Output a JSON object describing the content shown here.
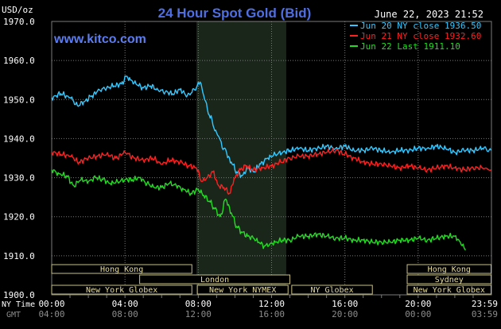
{
  "header": {
    "title": "24 Hour Spot Gold (Bid)",
    "timestamp": "June 22, 2023 21:52",
    "site": "www.kitco.com"
  },
  "colors": {
    "background": "#000000",
    "title": "#4f6fe0",
    "site": "#5b7df0",
    "grid": "#7a7a7a",
    "axis_text": "#ffffff",
    "session_shade": "#1b261b",
    "session_box_fill": "#000000",
    "session_box_stroke": "#c8c084",
    "session_text": "#e6dc9a",
    "gmt_text": "#8c8c8c"
  },
  "chart_data": {
    "type": "line",
    "title": "24 Hour Spot Gold (Bid)",
    "ylabel": "USD/oz",
    "ylim": [
      1900,
      1970
    ],
    "xlim": [
      0,
      24
    ],
    "yticks": [
      1900,
      1910,
      1920,
      1930,
      1940,
      1950,
      1960,
      1970
    ],
    "ytick_labels": [
      "1900.0",
      "1910.0",
      "1920.0",
      "1930.0",
      "1940.0",
      "1950.0",
      "1960.0",
      "1970.0"
    ],
    "xticks": [
      0,
      4,
      8,
      12,
      16,
      20,
      24
    ],
    "xtick_labels_ny": [
      "00:00",
      "04:00",
      "08:00",
      "12:00",
      "16:00",
      "20:00",
      "23:59"
    ],
    "xtick_labels_gmt": [
      "04:00",
      "08:00",
      "12:00",
      "16:00",
      "20:00",
      "00:00",
      "03:59"
    ],
    "x_axis_label_ny": "NY Time",
    "x_axis_label_gmt": "GMT",
    "grid": true,
    "legend_position": "top-right",
    "shaded_period": [
      7.9,
      12.8
    ],
    "series": [
      {
        "name": "Jun 20 NY close 1936.50",
        "color": "#33c8ff",
        "x": [
          0,
          0.5,
          1,
          1.4,
          1.8,
          2.2,
          2.6,
          3.0,
          3.4,
          3.8,
          4.1,
          4.3,
          4.6,
          5.0,
          5.4,
          5.8,
          6.2,
          6.6,
          7.0,
          7.4,
          7.8,
          8.1,
          8.3,
          8.6,
          9.0,
          9.4,
          9.8,
          10.1,
          10.4,
          10.7,
          11.0,
          11.4,
          11.8,
          12.2,
          12.6,
          13.0,
          13.5,
          14.0,
          14.5,
          15.0,
          15.5,
          16.0,
          16.5,
          17.0,
          17.5,
          18.0,
          18.5,
          19.0,
          19.5,
          20.0,
          20.5,
          21.0,
          21.5,
          22.0,
          22.5,
          23.0,
          23.5,
          23.98
        ],
        "values": [
          1950.5,
          1951.5,
          1950.5,
          1948.5,
          1949.5,
          1951.0,
          1952.5,
          1953.0,
          1953.5,
          1954.0,
          1956.0,
          1955.0,
          1954.0,
          1953.0,
          1953.5,
          1952.5,
          1952.0,
          1951.5,
          1952.5,
          1951.0,
          1952.5,
          1954.5,
          1951.0,
          1946.0,
          1941.5,
          1937.5,
          1934.0,
          1931.5,
          1930.5,
          1932.5,
          1931.5,
          1933.5,
          1935.0,
          1936.0,
          1936.5,
          1937.0,
          1937.5,
          1937.0,
          1937.5,
          1938.0,
          1937.5,
          1938.0,
          1937.0,
          1937.0,
          1937.5,
          1937.0,
          1936.5,
          1937.0,
          1937.0,
          1937.5,
          1937.5,
          1938.0,
          1937.5,
          1936.5,
          1937.0,
          1937.0,
          1937.5,
          1937.0
        ]
      },
      {
        "name": "Jun 21 NY close 1932.60",
        "color": "#ff2020",
        "x": [
          0,
          0.5,
          1,
          1.5,
          2.0,
          2.5,
          3.0,
          3.5,
          4.0,
          4.5,
          5.0,
          5.5,
          6.0,
          6.5,
          7.0,
          7.5,
          7.9,
          8.2,
          8.5,
          8.8,
          9.1,
          9.4,
          9.7,
          10.0,
          10.3,
          10.6,
          11.0,
          11.5,
          12.0,
          12.5,
          13.0,
          13.5,
          14.0,
          14.5,
          15.0,
          15.5,
          16.0,
          16.5,
          17.0,
          17.5,
          18.0,
          18.5,
          19.0,
          19.5,
          20.0,
          20.5,
          21.0,
          21.5,
          22.0,
          22.5,
          23.0,
          23.5,
          23.98
        ],
        "values": [
          1936.5,
          1936.0,
          1935.5,
          1934.0,
          1935.0,
          1935.5,
          1936.0,
          1935.0,
          1936.5,
          1935.0,
          1934.5,
          1935.0,
          1933.5,
          1934.5,
          1934.0,
          1933.0,
          1932.5,
          1929.0,
          1930.0,
          1931.5,
          1928.0,
          1927.5,
          1926.0,
          1930.0,
          1932.0,
          1933.0,
          1932.0,
          1932.5,
          1933.0,
          1934.0,
          1935.0,
          1935.5,
          1935.5,
          1936.0,
          1936.5,
          1937.0,
          1936.0,
          1935.0,
          1934.0,
          1933.5,
          1933.5,
          1933.0,
          1932.5,
          1933.0,
          1932.5,
          1932.0,
          1932.5,
          1933.0,
          1932.5,
          1932.0,
          1932.5,
          1932.5,
          1932.0
        ]
      },
      {
        "name": "Jun 22 Last 1911.10",
        "color": "#22dd22",
        "x": [
          0,
          0.4,
          0.8,
          1.2,
          1.6,
          2.0,
          2.4,
          2.8,
          3.2,
          3.6,
          4.0,
          4.4,
          4.8,
          5.2,
          5.6,
          6.0,
          6.4,
          6.8,
          7.2,
          7.6,
          8.0,
          8.3,
          8.6,
          8.9,
          9.2,
          9.5,
          9.8,
          10.1,
          10.4,
          10.7,
          11.0,
          11.3,
          11.6,
          11.9,
          12.2,
          12.6,
          13.0,
          13.5,
          14.0,
          14.5,
          15.0,
          15.5,
          16.0,
          16.5,
          17.0,
          17.5,
          18.0,
          18.5,
          19.0,
          19.5,
          20.0,
          20.5,
          21.0,
          21.5,
          22.0,
          22.3,
          22.6
        ],
        "values": [
          1932.0,
          1931.0,
          1930.5,
          1928.0,
          1929.5,
          1929.0,
          1930.0,
          1929.5,
          1928.5,
          1929.0,
          1929.5,
          1929.5,
          1930.0,
          1928.5,
          1927.5,
          1927.5,
          1928.5,
          1928.0,
          1927.0,
          1926.0,
          1927.0,
          1925.5,
          1924.0,
          1922.0,
          1920.0,
          1924.5,
          1921.0,
          1917.5,
          1916.0,
          1915.0,
          1914.5,
          1913.5,
          1912.5,
          1913.0,
          1913.5,
          1914.0,
          1914.0,
          1915.0,
          1915.0,
          1915.5,
          1915.0,
          1914.5,
          1914.5,
          1914.0,
          1914.0,
          1913.5,
          1913.5,
          1913.5,
          1914.0,
          1914.0,
          1914.5,
          1914.0,
          1914.5,
          1915.0,
          1915.0,
          1913.5,
          1911.5
        ]
      }
    ],
    "sessions": [
      {
        "label": "Hong Kong",
        "row": 0,
        "start": 0.0,
        "end": 7.65
      },
      {
        "label": "Hong Kong",
        "row": 0,
        "start": 19.4,
        "end": 23.98
      },
      {
        "label": "London",
        "row": 1,
        "start": 4.8,
        "end": 13.0
      },
      {
        "label": "Sydney",
        "row": 1,
        "start": 19.4,
        "end": 23.98
      },
      {
        "label": "New York Globex",
        "row": 2,
        "start": 0.0,
        "end": 7.65
      },
      {
        "label": "New York NYMEX",
        "row": 2,
        "start": 7.95,
        "end": 12.9
      },
      {
        "label": "NY Globex",
        "row": 2,
        "start": 13.1,
        "end": 17.5
      },
      {
        "label": "New York Globex",
        "row": 2,
        "start": 19.4,
        "end": 23.98
      }
    ]
  }
}
